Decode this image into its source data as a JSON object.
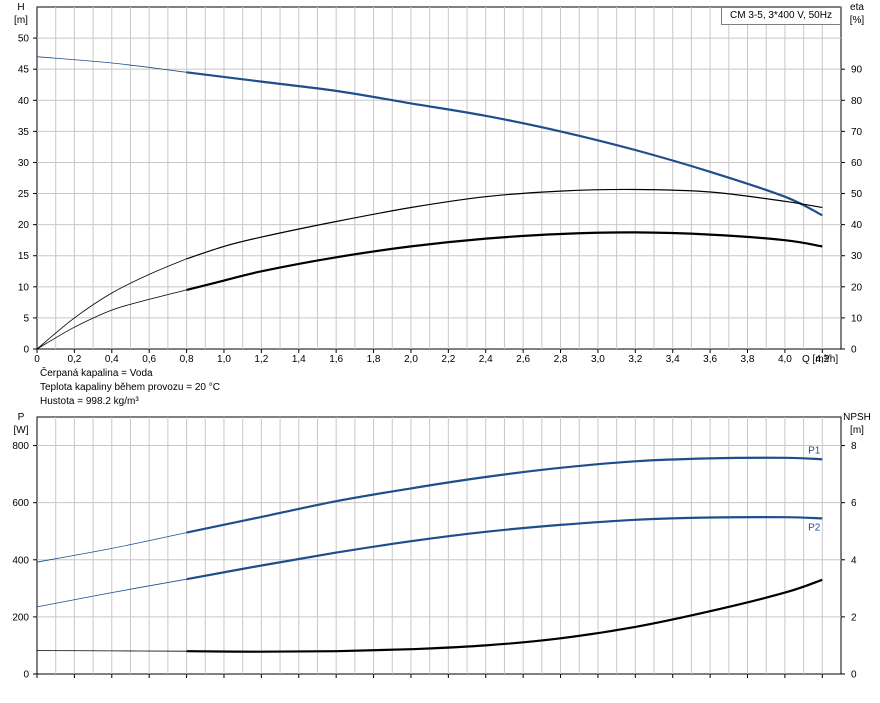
{
  "chart_data": [
    {
      "type": "line",
      "title": "CM 3-5, 3*400 V, 50Hz",
      "xlabel": "Q [m³/h]",
      "ylabel": "H",
      "ylabel_unit": "[m]",
      "y2label": "eta",
      "y2label_unit": "[%]",
      "xlim": [
        0,
        4.3
      ],
      "ylim": [
        0,
        55
      ],
      "y2lim": [
        0,
        110
      ],
      "x_ticks": [
        "0",
        "0,2",
        "0,4",
        "0,6",
        "0,8",
        "1,0",
        "1,2",
        "1,4",
        "1,6",
        "1,8",
        "2,0",
        "2,2",
        "2,4",
        "2,6",
        "2,8",
        "3,0",
        "3,2",
        "3,4",
        "3,6",
        "3,8",
        "4,0",
        "4,2"
      ],
      "y_ticks": [
        "0",
        "5",
        "10",
        "15",
        "20",
        "25",
        "30",
        "35",
        "40",
        "45",
        "50"
      ],
      "y2_ticks": [
        "0",
        "10",
        "20",
        "30",
        "40",
        "50",
        "60",
        "70",
        "80",
        "90"
      ],
      "grid": true,
      "series": [
        {
          "key": "H",
          "axis": "left",
          "color": "#1f4e8c",
          "x": [
            0,
            0.4,
            0.8,
            1.2,
            1.6,
            2.0,
            2.4,
            2.8,
            3.2,
            3.6,
            4.0,
            4.2
          ],
          "values": [
            47,
            46,
            44.5,
            43,
            41.5,
            39.5,
            37.5,
            35,
            32,
            28.5,
            24.5,
            21.5
          ],
          "op_start": 0.8
        },
        {
          "key": "eta",
          "axis": "right",
          "color": "#000000",
          "x": [
            0,
            0.2,
            0.4,
            0.6,
            0.8,
            1.0,
            1.2,
            1.6,
            2.0,
            2.4,
            2.8,
            3.2,
            3.6,
            4.0,
            4.2
          ],
          "values": [
            0,
            10,
            18,
            24,
            29,
            33,
            36,
            41,
            45.5,
            49,
            50.8,
            51.3,
            50.5,
            47.5,
            45.5
          ],
          "op_start": 0.8
        },
        {
          "key": "eta_bold",
          "axis": "right",
          "color": "#000000",
          "x": [
            0,
            0.2,
            0.4,
            0.6,
            0.8,
            1.0,
            1.2,
            1.6,
            2.0,
            2.4,
            2.8,
            3.2,
            3.6,
            4.0,
            4.2
          ],
          "values": [
            0,
            7,
            12.5,
            16,
            19,
            22,
            25,
            29.5,
            33,
            35.5,
            37,
            37.5,
            36.8,
            35,
            33
          ],
          "op_start": 0.8
        }
      ]
    },
    {
      "type": "line",
      "xlabel": "",
      "ylabel": "P",
      "ylabel_unit": "[W]",
      "y2label": "NPSH",
      "y2label_unit": "[m]",
      "xlim": [
        0,
        4.3
      ],
      "ylim": [
        0,
        900
      ],
      "y2lim": [
        0,
        9
      ],
      "y_ticks": [
        "0",
        "200",
        "400",
        "600",
        "800"
      ],
      "y2_ticks": [
        "0",
        "2",
        "4",
        "6",
        "8"
      ],
      "grid": true,
      "series": [
        {
          "name": "P1",
          "axis": "left",
          "color": "#1f4e8c",
          "x": [
            0,
            0.4,
            0.8,
            1.2,
            1.6,
            2.0,
            2.4,
            2.8,
            3.2,
            3.6,
            4.0,
            4.2
          ],
          "values": [
            392,
            440,
            495,
            550,
            605,
            650,
            690,
            722,
            745,
            755,
            757,
            752
          ],
          "op_start": 0.8
        },
        {
          "name": "P2",
          "axis": "left",
          "color": "#1f4e8c",
          "x": [
            0,
            0.4,
            0.8,
            1.2,
            1.6,
            2.0,
            2.4,
            2.8,
            3.2,
            3.6,
            4.0,
            4.2
          ],
          "values": [
            235,
            285,
            332,
            380,
            425,
            465,
            498,
            522,
            540,
            548,
            549,
            545
          ],
          "op_start": 0.8
        },
        {
          "key": "NPSH",
          "axis": "right",
          "color": "#000000",
          "x": [
            0,
            0.4,
            0.8,
            1.2,
            1.6,
            2.0,
            2.4,
            2.8,
            3.2,
            3.6,
            4.0,
            4.2
          ],
          "values": [
            0.82,
            0.81,
            0.8,
            0.78,
            0.8,
            0.87,
            1.0,
            1.25,
            1.65,
            2.2,
            2.85,
            3.3
          ],
          "op_start": 0.8
        }
      ]
    }
  ],
  "notes": {
    "liquid": "Čerpaná kapalina = Voda",
    "temperature": "Teplota kapaliny během provozu = 20 °C",
    "density": "Hustota = 998.2 kg/m³"
  }
}
